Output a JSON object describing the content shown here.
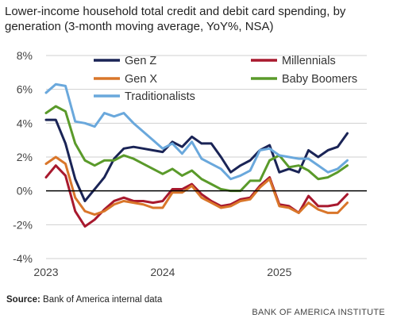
{
  "chart_data": {
    "type": "line",
    "title": "Lower-income household total credit and debit card spending, by generation (3-month moving average, YoY%, NSA)",
    "yticks": [
      "8%",
      "6%",
      "4%",
      "2%",
      "0%",
      "-2%",
      "-4%"
    ],
    "ylim": [
      -4,
      8
    ],
    "xticks": [
      {
        "label": "2023",
        "x": 0
      },
      {
        "label": "2024",
        "x": 12
      },
      {
        "label": "2025",
        "x": 24
      }
    ],
    "xlim": [
      0,
      33
    ],
    "grid": true,
    "legend_position": "top",
    "series": [
      {
        "name": "Gen Z",
        "color": "#1a2456",
        "values": [
          4.2,
          4.2,
          2.8,
          0.7,
          -0.6,
          0.1,
          0.8,
          1.9,
          2.5,
          2.6,
          2.5,
          2.4,
          2.3,
          2.9,
          2.6,
          3.2,
          2.8,
          2.8,
          2.0,
          1.1,
          1.5,
          1.8,
          2.4,
          2.7,
          1.1,
          1.3,
          1.1,
          2.4,
          2.0,
          2.4,
          2.6,
          3.4
        ]
      },
      {
        "name": "Millennials",
        "color": "#a8192e",
        "values": [
          0.8,
          1.5,
          0.9,
          -1.2,
          -2.1,
          -1.7,
          -1.1,
          -0.6,
          -0.4,
          -0.6,
          -0.6,
          -0.7,
          -0.6,
          0.1,
          0.1,
          0.4,
          -0.2,
          -0.6,
          -0.9,
          -0.8,
          -0.5,
          -0.4,
          0.3,
          0.8,
          -0.8,
          -0.9,
          -1.3,
          -0.3,
          -0.9,
          -0.9,
          -0.8,
          -0.2
        ]
      },
      {
        "name": "Gen X",
        "color": "#d9762a",
        "values": [
          1.6,
          2.0,
          1.6,
          -0.4,
          -1.2,
          -1.4,
          -1.2,
          -0.8,
          -0.6,
          -0.7,
          -0.8,
          -1.0,
          -1.0,
          -0.1,
          -0.1,
          0.3,
          -0.4,
          -0.7,
          -1.0,
          -0.9,
          -0.6,
          -0.5,
          0.2,
          0.7,
          -0.9,
          -1.0,
          -1.3,
          -0.7,
          -1.1,
          -1.3,
          -1.3,
          -0.7
        ]
      },
      {
        "name": "Baby Boomers",
        "color": "#5a9a2a",
        "values": [
          4.6,
          5.0,
          4.7,
          2.8,
          1.8,
          1.5,
          1.8,
          1.8,
          2.1,
          1.9,
          1.6,
          1.3,
          1.0,
          1.3,
          0.9,
          1.2,
          0.7,
          0.4,
          0.1,
          0.0,
          0.0,
          0.6,
          0.6,
          1.8,
          2.1,
          1.4,
          1.5,
          1.2,
          0.7,
          0.8,
          1.1,
          1.5
        ]
      },
      {
        "name": "Traditionalists",
        "color": "#6aa8dc",
        "values": [
          5.8,
          6.3,
          6.2,
          4.1,
          4.0,
          3.8,
          4.6,
          4.4,
          4.6,
          4.0,
          3.5,
          3.0,
          2.5,
          2.8,
          2.2,
          2.9,
          1.9,
          1.6,
          1.3,
          0.7,
          0.9,
          1.2,
          2.4,
          2.5,
          2.1,
          2.0,
          1.9,
          1.9,
          1.5,
          1.1,
          1.3,
          1.8
        ]
      }
    ]
  },
  "source": {
    "label": "Source:",
    "text": " Bank of America internal data"
  },
  "brand": "BANK OF AMERICA INSTITUTE"
}
